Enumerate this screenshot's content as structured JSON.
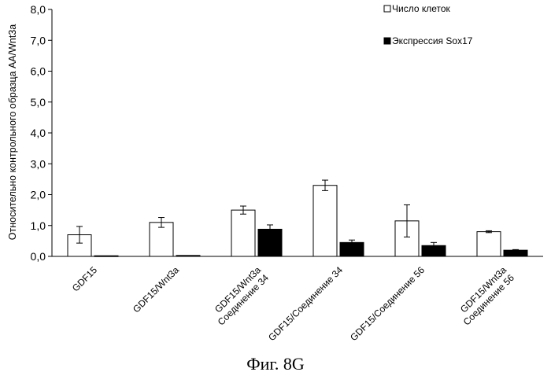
{
  "chart_data": {
    "type": "bar",
    "ylabel": "Относительно контрольного образца AA/Wnt3a",
    "ylim": [
      0,
      8
    ],
    "yticks": [
      "0,0",
      "1,0",
      "2,0",
      "3,0",
      "4,0",
      "5,0",
      "6,0",
      "7,0",
      "8,0"
    ],
    "categories": [
      [
        "GDF15"
      ],
      [
        "GDF15/Wnt3a"
      ],
      [
        "GDF15/Wnt3a",
        "Соединение 34"
      ],
      [
        "GDF15/Соединение 34"
      ],
      [
        "GDF15/Соединение 56"
      ],
      [
        "GDF15/Wnt3a",
        "Соединение 56"
      ]
    ],
    "series": [
      {
        "name": "Число клеток",
        "color": "#ffffff",
        "values": [
          0.7,
          1.1,
          1.5,
          2.3,
          1.15,
          0.8
        ],
        "errors": [
          0.27,
          0.16,
          0.13,
          0.17,
          0.52,
          0.03
        ]
      },
      {
        "name": "Экспрессия Sox17",
        "color": "#000000",
        "values": [
          0.02,
          0.03,
          0.88,
          0.45,
          0.35,
          0.2
        ],
        "errors": [
          0,
          0,
          0.14,
          0.08,
          0.1,
          0.02
        ]
      }
    ],
    "legend_position": "top-right",
    "grid": false
  },
  "caption": "Фиг. 8G"
}
